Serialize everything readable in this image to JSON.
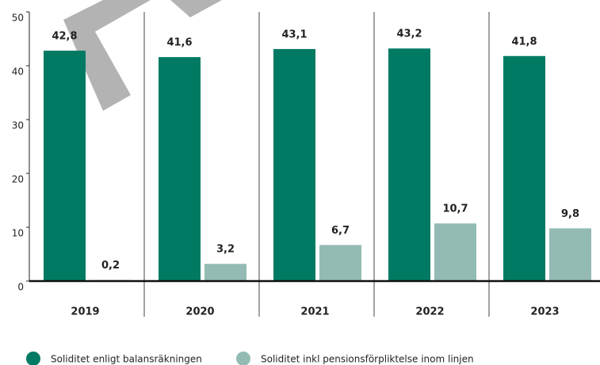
{
  "chart_data": {
    "type": "bar",
    "categories": [
      "2019",
      "2020",
      "2021",
      "2022",
      "2023"
    ],
    "series": [
      {
        "name": "Soliditet enligt balansräkningen",
        "color": "#007a63",
        "values": [
          42.8,
          41.6,
          43.1,
          43.2,
          41.8
        ],
        "value_labels": [
          "42,8",
          "41,6",
          "43,1",
          "43,2",
          "41,8"
        ]
      },
      {
        "name": "Soliditet inkl pensionsförpliktelse inom linjen",
        "color": "#93bbb3",
        "values": [
          0.2,
          3.2,
          6.7,
          10.7,
          9.8
        ],
        "value_labels": [
          "0,2",
          "3,2",
          "6,7",
          "10,7",
          "9,8"
        ]
      }
    ],
    "ylim": [
      0,
      50
    ],
    "yticks": [
      0,
      10,
      20,
      30,
      40,
      50
    ],
    "legend": "bottom-left"
  }
}
